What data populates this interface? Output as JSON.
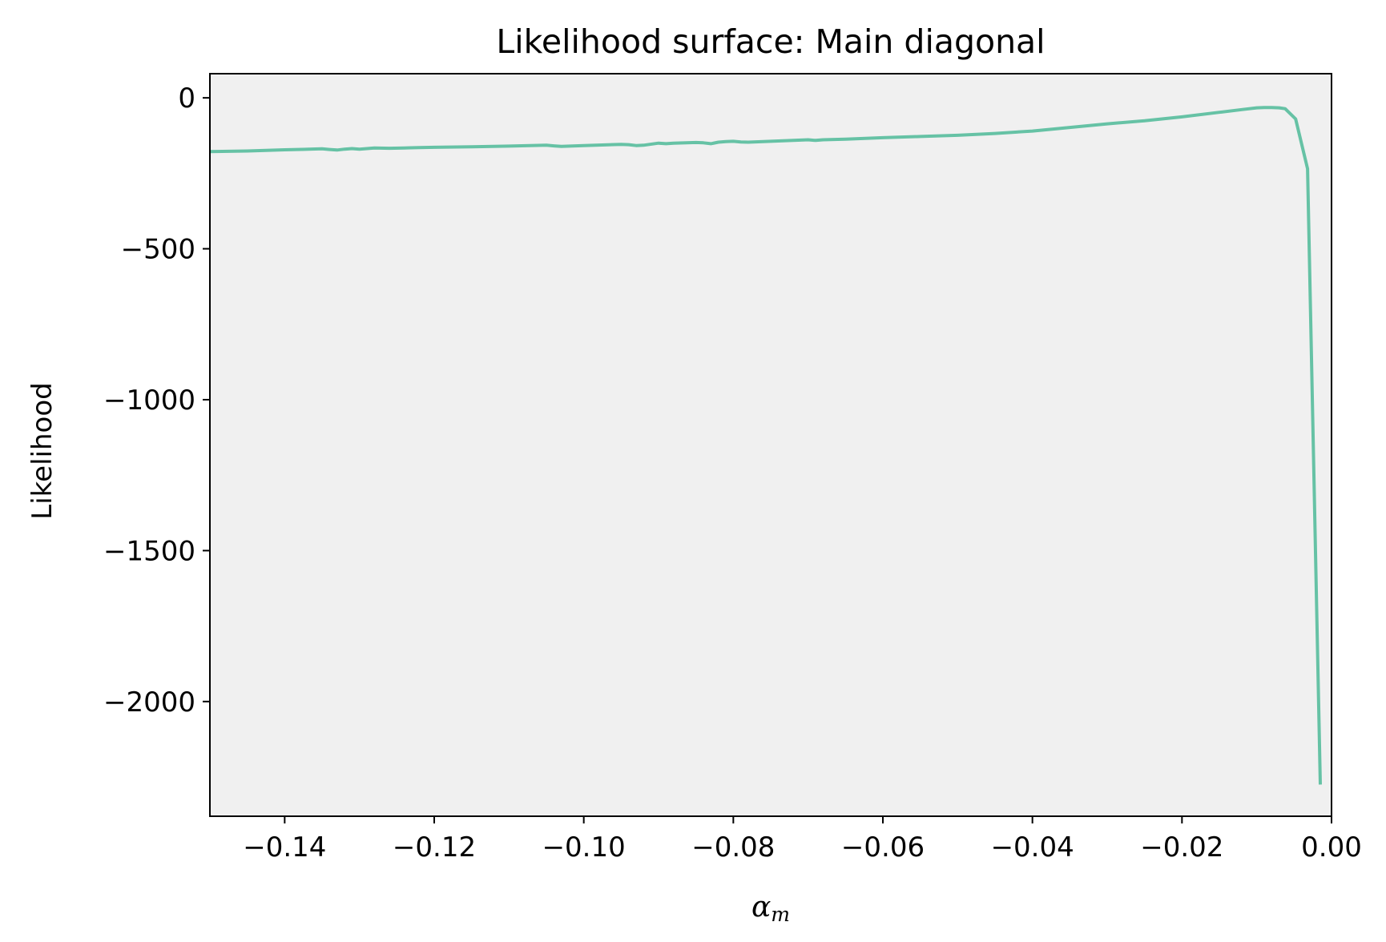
{
  "chart_data": {
    "type": "line",
    "title": "Likelihood surface: Main diagonal",
    "xlabel": {
      "symbol": "α",
      "subscript": "m"
    },
    "ylabel": "Likelihood",
    "xlim": [
      -0.15,
      0.0
    ],
    "ylim": [
      -2380,
      80
    ],
    "x_ticks": [
      -0.14,
      -0.12,
      -0.1,
      -0.08,
      -0.06,
      -0.04,
      -0.02,
      0.0
    ],
    "x_tick_labels": [
      "−0.14",
      "−0.12",
      "−0.10",
      "−0.08",
      "−0.06",
      "−0.04",
      "−0.02",
      "0.00"
    ],
    "y_ticks": [
      0,
      -500,
      -1000,
      -1500,
      -2000
    ],
    "y_tick_labels": [
      "0",
      "−500",
      "−1000",
      "−1500",
      "−2000"
    ],
    "grid": false,
    "legend": "none",
    "colors": {
      "line": "#66c2a5",
      "plot_background": "#f0f0f0",
      "figure_background": "#ffffff"
    },
    "series": [
      {
        "x": [
          -0.15,
          -0.145,
          -0.14,
          -0.135,
          -0.134,
          -0.133,
          -0.132,
          -0.131,
          -0.13,
          -0.129,
          -0.128,
          -0.126,
          -0.124,
          -0.122,
          -0.12,
          -0.115,
          -0.11,
          -0.105,
          -0.104,
          -0.103,
          -0.1,
          -0.095,
          -0.094,
          -0.093,
          -0.092,
          -0.09,
          -0.089,
          -0.088,
          -0.085,
          -0.084,
          -0.083,
          -0.082,
          -0.081,
          -0.08,
          -0.079,
          -0.078,
          -0.075,
          -0.07,
          -0.069,
          -0.068,
          -0.065,
          -0.06,
          -0.055,
          -0.05,
          -0.045,
          -0.04,
          -0.035,
          -0.03,
          -0.025,
          -0.02,
          -0.015,
          -0.012,
          -0.01,
          -0.009,
          -0.008,
          -0.007,
          -0.0062,
          -0.0048,
          -0.0032,
          -0.0015
        ],
        "y": [
          -178,
          -176,
          -172,
          -169,
          -171,
          -173,
          -170,
          -168,
          -170,
          -168,
          -166,
          -167,
          -166,
          -165,
          -164,
          -162,
          -160,
          -157,
          -159,
          -161,
          -158,
          -154,
          -155,
          -158,
          -157,
          -150,
          -152,
          -150,
          -148,
          -149,
          -152,
          -147,
          -145,
          -144,
          -146,
          -147,
          -144,
          -139,
          -141,
          -139,
          -137,
          -132,
          -128,
          -124,
          -118,
          -110,
          -98,
          -86,
          -76,
          -63,
          -48,
          -39,
          -33,
          -32,
          -32,
          -33,
          -36,
          -70,
          -235,
          -2275
        ]
      }
    ]
  }
}
